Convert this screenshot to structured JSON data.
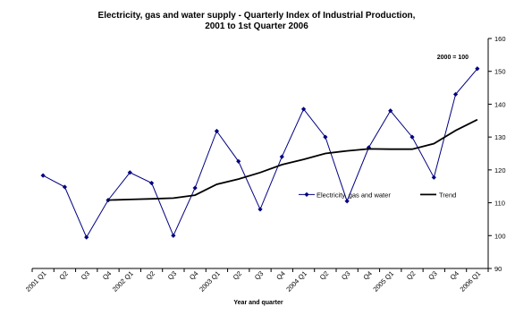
{
  "chart_data": {
    "type": "line",
    "title": "Electricity, gas and water supply - Quarterly Index of Industrial Production,",
    "subtitle": "2001 to 1st Quarter 2006",
    "note": "2000 = 100",
    "xlabel": "Year and quarter",
    "ylabel": "",
    "ylim": [
      90,
      160
    ],
    "yticks": [
      90,
      100,
      110,
      120,
      130,
      140,
      150,
      160
    ],
    "y_axis_position": "right",
    "grid": false,
    "legend_position": "center-right",
    "categories": [
      "2001 Q1",
      "Q2",
      "Q3",
      "Q4",
      "2002 Q1",
      "Q2",
      "Q3",
      "Q4",
      "2003 Q1",
      "Q2",
      "Q3",
      "Q4",
      "2004 Q1",
      "Q2",
      "Q3",
      "Q4",
      "2005 Q1",
      "Q2",
      "Q3",
      "Q4",
      "2006 Q1"
    ],
    "series": [
      {
        "name": "Electricity, gas and water",
        "color": "#000080",
        "marker": "diamond",
        "values": [
          118.3,
          114.8,
          99.5,
          110.8,
          119.2,
          116.0,
          100.0,
          114.5,
          131.8,
          122.6,
          108.0,
          124.0,
          138.5,
          130.0,
          110.5,
          126.8,
          138.0,
          130.0,
          117.7,
          143.0,
          150.8
        ]
      },
      {
        "name": "Trend",
        "color": "#000000",
        "marker": "none",
        "values": [
          null,
          null,
          null,
          110.8,
          111.0,
          111.2,
          111.4,
          112.3,
          115.6,
          117.2,
          119.2,
          121.6,
          123.2,
          125.0,
          125.8,
          126.4,
          126.3,
          126.3,
          128.0,
          132.0,
          135.3
        ]
      }
    ]
  }
}
